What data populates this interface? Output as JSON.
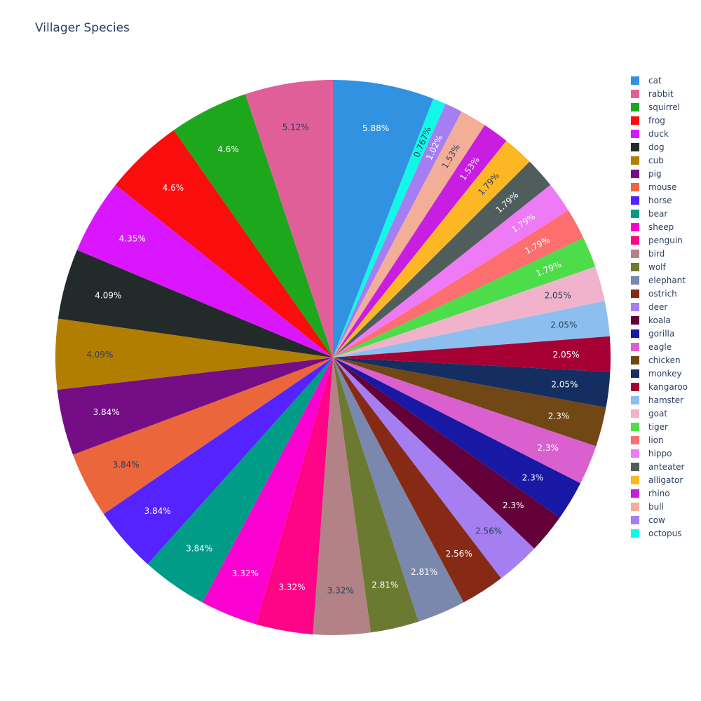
{
  "chart_data": {
    "type": "pie",
    "title": "Villager Species",
    "direction": "clockwise",
    "legend_position": "right",
    "slices": [
      {
        "label": "cat",
        "percent_text": "5.88%",
        "value": 23,
        "color": "#3192e2",
        "text_color": "#ffffff"
      },
      {
        "label": "octopus",
        "percent_text": "0.767%",
        "value": 3,
        "color": "#12f8e6",
        "text_color": "#2a3f5f"
      },
      {
        "label": "cow",
        "percent_text": "1.02%",
        "value": 4,
        "color": "#a57ef2",
        "text_color": "#ffffff"
      },
      {
        "label": "bull",
        "percent_text": "1.53%",
        "value": 6,
        "color": "#f2ae97",
        "text_color": "#2a3f5f"
      },
      {
        "label": "rhino",
        "percent_text": "1.53%",
        "value": 6,
        "color": "#c71ee1",
        "text_color": "#ffffff"
      },
      {
        "label": "alligator",
        "percent_text": "1.79%",
        "value": 7,
        "color": "#fdb624",
        "text_color": "#2a3f5f"
      },
      {
        "label": "anteater",
        "percent_text": "1.79%",
        "value": 7,
        "color": "#4f5e5c",
        "text_color": "#ffffff"
      },
      {
        "label": "hippo",
        "percent_text": "1.79%",
        "value": 7,
        "color": "#ef7af5",
        "text_color": "#ffffff"
      },
      {
        "label": "lion",
        "percent_text": "1.79%",
        "value": 7,
        "color": "#fd6e6f",
        "text_color": "#ffffff"
      },
      {
        "label": "tiger",
        "percent_text": "1.79%",
        "value": 7,
        "color": "#4ddd4a",
        "text_color": "#ffffff"
      },
      {
        "label": "goat",
        "percent_text": "2.05%",
        "value": 8,
        "color": "#f0b3cb",
        "text_color": "#2a3f5f"
      },
      {
        "label": "hamster",
        "percent_text": "2.05%",
        "value": 8,
        "color": "#8cbfef",
        "text_color": "#2a3f5f"
      },
      {
        "label": "kangaroo",
        "percent_text": "2.05%",
        "value": 8,
        "color": "#a60034",
        "text_color": "#ffffff"
      },
      {
        "label": "monkey",
        "percent_text": "2.05%",
        "value": 8,
        "color": "#142e62",
        "text_color": "#ffffff"
      },
      {
        "label": "chicken",
        "percent_text": "2.3%",
        "value": 9,
        "color": "#714716",
        "text_color": "#ffffff"
      },
      {
        "label": "eagle",
        "percent_text": "2.3%",
        "value": 9,
        "color": "#da60cf",
        "text_color": "#ffffff"
      },
      {
        "label": "gorilla",
        "percent_text": "2.3%",
        "value": 9,
        "color": "#1718a4",
        "text_color": "#ffffff"
      },
      {
        "label": "koala",
        "percent_text": "2.3%",
        "value": 9,
        "color": "#63003a",
        "text_color": "#ffffff"
      },
      {
        "label": "deer",
        "percent_text": "2.56%",
        "value": 10,
        "color": "#a57ef2",
        "text_color": "#2a3f5f"
      },
      {
        "label": "ostrich",
        "percent_text": "2.56%",
        "value": 10,
        "color": "#862a16",
        "text_color": "#ffffff"
      },
      {
        "label": "elephant",
        "percent_text": "2.81%",
        "value": 11,
        "color": "#7988ac",
        "text_color": "#ffffff"
      },
      {
        "label": "wolf",
        "percent_text": "2.81%",
        "value": 11,
        "color": "#6c7a31",
        "text_color": "#ffffff"
      },
      {
        "label": "bird",
        "percent_text": "3.32%",
        "value": 13,
        "color": "#b28286",
        "text_color": "#2a3f5f"
      },
      {
        "label": "penguin",
        "percent_text": "3.32%",
        "value": 13,
        "color": "#fd0586",
        "text_color": "#ffffff"
      },
      {
        "label": "sheep",
        "percent_text": "3.32%",
        "value": 13,
        "color": "#fb00d1",
        "text_color": "#ffffff"
      },
      {
        "label": "bear",
        "percent_text": "3.84%",
        "value": 15,
        "color": "#009c88",
        "text_color": "#ffffff"
      },
      {
        "label": "horse",
        "percent_text": "3.84%",
        "value": 15,
        "color": "#5423ff",
        "text_color": "#ffffff"
      },
      {
        "label": "mouse",
        "percent_text": "3.84%",
        "value": 15,
        "color": "#eb663b",
        "text_color": "#2a3f5f"
      },
      {
        "label": "pig",
        "percent_text": "3.84%",
        "value": 15,
        "color": "#750d86",
        "text_color": "#ffffff"
      },
      {
        "label": "cub",
        "percent_text": "4.09%",
        "value": 16,
        "color": "#b27e00",
        "text_color": "#2a3f5f"
      },
      {
        "label": "dog",
        "percent_text": "4.09%",
        "value": 16,
        "color": "#222a2a",
        "text_color": "#ffffff"
      },
      {
        "label": "duck",
        "percent_text": "4.35%",
        "value": 17,
        "color": "#da16ff",
        "text_color": "#ffffff"
      },
      {
        "label": "frog",
        "percent_text": "4.6%",
        "value": 18,
        "color": "#fb0d0d",
        "text_color": "#ffffff"
      },
      {
        "label": "squirrel",
        "percent_text": "4.6%",
        "value": 18,
        "color": "#1ca71c",
        "text_color": "#ffffff"
      },
      {
        "label": "rabbit",
        "percent_text": "5.12%",
        "value": 20,
        "color": "#e15f99",
        "text_color": "#2a3f5f"
      }
    ],
    "legend_order": [
      "cat",
      "rabbit",
      "squirrel",
      "frog",
      "duck",
      "dog",
      "cub",
      "pig",
      "mouse",
      "horse",
      "bear",
      "sheep",
      "penguin",
      "bird",
      "wolf",
      "elephant",
      "ostrich",
      "deer",
      "koala",
      "gorilla",
      "eagle",
      "chicken",
      "monkey",
      "kangaroo",
      "hamster",
      "goat",
      "tiger",
      "lion",
      "hippo",
      "anteater",
      "alligator",
      "rhino",
      "bull",
      "cow",
      "octopus"
    ]
  }
}
